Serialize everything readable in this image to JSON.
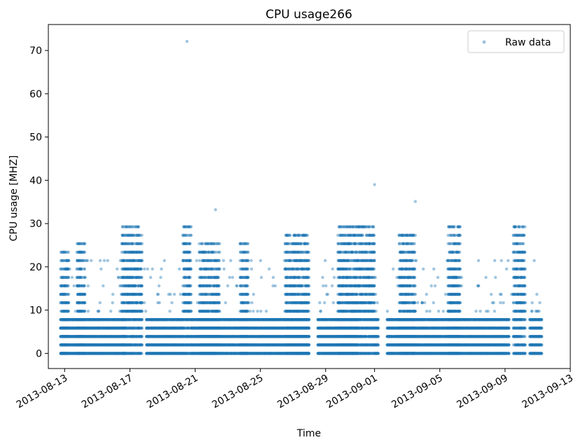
{
  "chart_data": {
    "type": "scatter",
    "title": "CPU usage266",
    "xlabel": "Time",
    "ylabel": "CPU usage [MHZ]",
    "x_scale": "date",
    "xlim": [
      "2013-08-12T00:00",
      "2013-09-13T00:00"
    ],
    "ylim": [
      -3.5,
      76
    ],
    "grid": false,
    "legend_position": "top-right",
    "x_tick_labels": [
      "2013-08-13",
      "2013-08-17",
      "2013-08-21",
      "2013-08-25",
      "2013-08-29",
      "2013-09-01",
      "2013-09-05",
      "2013-09-09",
      "2013-09-13"
    ],
    "y_ticks": [
      0,
      10,
      20,
      30,
      40,
      50,
      60,
      70
    ],
    "series": [
      {
        "name": "Raw data",
        "color": "#1f77b4",
        "marker": "circle",
        "levels": [
          0,
          1.95,
          3.9,
          5.85,
          7.8,
          9.75,
          11.7,
          13.65,
          15.6,
          17.55,
          19.5,
          21.45,
          23.4,
          25.35,
          27.3,
          29.25
        ],
        "outliers": [
          {
            "x": "2013-08-20T12:00",
            "y": 72.1
          },
          {
            "x": "2013-09-01T00:00",
            "y": 39.0
          },
          {
            "x": "2013-09-03T12:00",
            "y": 35.1
          },
          {
            "x": "2013-08-22T06:00",
            "y": 33.2
          }
        ],
        "busy_periods": [
          {
            "start": "2013-08-12T18:00",
            "end": "2013-08-13T06:00",
            "max": 23.4
          },
          {
            "start": "2013-08-13T18:00",
            "end": "2013-08-14T06:00",
            "max": 25.35
          },
          {
            "start": "2013-08-16T12:00",
            "end": "2013-08-17T18:00",
            "max": 29.25
          },
          {
            "start": "2013-08-20T06:00",
            "end": "2013-08-20T18:00",
            "max": 29.25
          },
          {
            "start": "2013-08-21T06:00",
            "end": "2013-08-22T12:00",
            "max": 25.35
          },
          {
            "start": "2013-08-23T18:00",
            "end": "2013-08-24T06:00",
            "max": 25.35
          },
          {
            "start": "2013-08-26T12:00",
            "end": "2013-08-28T00:00",
            "max": 27.3
          },
          {
            "start": "2013-08-29T18:00",
            "end": "2013-09-01T00:00",
            "max": 29.25
          },
          {
            "start": "2013-09-02T12:00",
            "end": "2013-09-03T12:00",
            "max": 27.3
          },
          {
            "start": "2013-09-05T12:00",
            "end": "2013-09-06T06:00",
            "max": 29.25
          },
          {
            "start": "2013-09-09T12:00",
            "end": "2013-09-10T12:00",
            "max": 29.25
          }
        ],
        "quiet_periods": [
          {
            "start": "2013-08-12T18:00",
            "end": "2013-08-16T18:00",
            "max": 7.8
          },
          {
            "start": "2013-08-18T00:00",
            "end": "2013-08-20T06:00",
            "max": 7.8
          },
          {
            "start": "2013-08-20T18:00",
            "end": "2013-08-28T00:00",
            "max": 7.8
          },
          {
            "start": "2013-08-28T00:00",
            "end": "2013-08-31T00:00",
            "max": 7.8
          },
          {
            "start": "2013-09-01T00:00",
            "end": "2013-09-09T06:00",
            "max": 7.8
          },
          {
            "start": "2013-09-10T12:00",
            "end": "2013-09-11T06:00",
            "max": 9.75
          }
        ],
        "gaps": [
          {
            "start": "2013-08-28T00:00",
            "end": "2013-08-28T12:00"
          },
          {
            "start": "2013-09-01T06:00",
            "end": "2013-09-01T18:00"
          },
          {
            "start": "2013-09-10T06:00",
            "end": "2013-09-10T12:00"
          }
        ]
      }
    ]
  }
}
